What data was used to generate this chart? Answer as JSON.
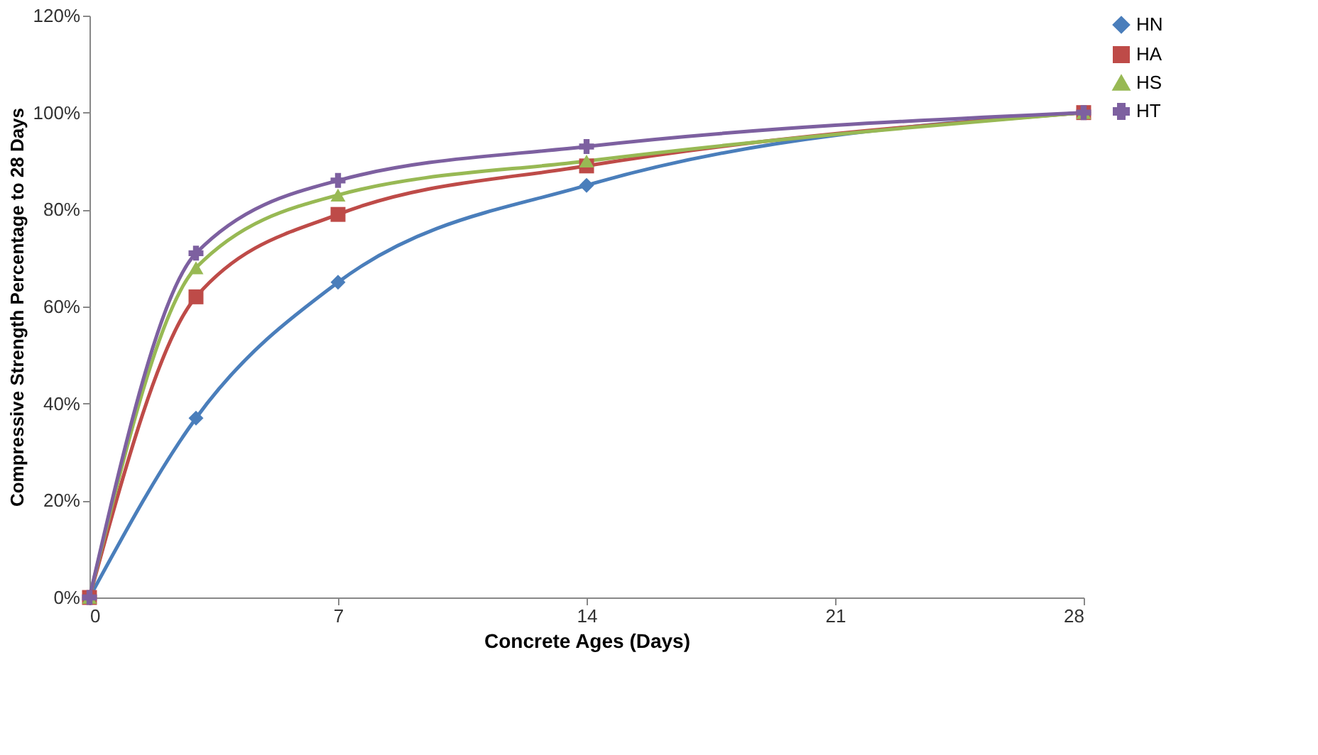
{
  "chart_data": {
    "type": "line",
    "xlabel": "Concrete Ages (Days)",
    "ylabel": "Compressive Strength Percentage to 28 Days",
    "x": [
      0,
      3,
      7,
      14,
      28
    ],
    "series": [
      {
        "name": "HN",
        "color": "#4a7ebb",
        "marker": "diamond",
        "values": [
          0,
          37,
          65,
          85,
          100
        ]
      },
      {
        "name": "HA",
        "color": "#be4b48",
        "marker": "square",
        "values": [
          0,
          62,
          79,
          89,
          100
        ]
      },
      {
        "name": "HS",
        "color": "#98b954",
        "marker": "triangle",
        "values": [
          0,
          68,
          83,
          90,
          100
        ]
      },
      {
        "name": "HT",
        "color": "#7d60a0",
        "marker": "cross",
        "values": [
          0,
          71,
          86,
          93,
          100
        ]
      }
    ],
    "xlim": [
      0,
      28
    ],
    "xticks": [
      0,
      7,
      14,
      21,
      28
    ],
    "ylim": [
      0,
      120
    ],
    "yticks": [
      {
        "value": 0,
        "label": "0%"
      },
      {
        "value": 20,
        "label": "20%"
      },
      {
        "value": 40,
        "label": "40%"
      },
      {
        "value": 60,
        "label": "60%"
      },
      {
        "value": 80,
        "label": "80%"
      },
      {
        "value": 100,
        "label": "100%"
      },
      {
        "value": 120,
        "label": "120%"
      }
    ],
    "grid": false,
    "legend": "right",
    "line_style": "solid"
  }
}
